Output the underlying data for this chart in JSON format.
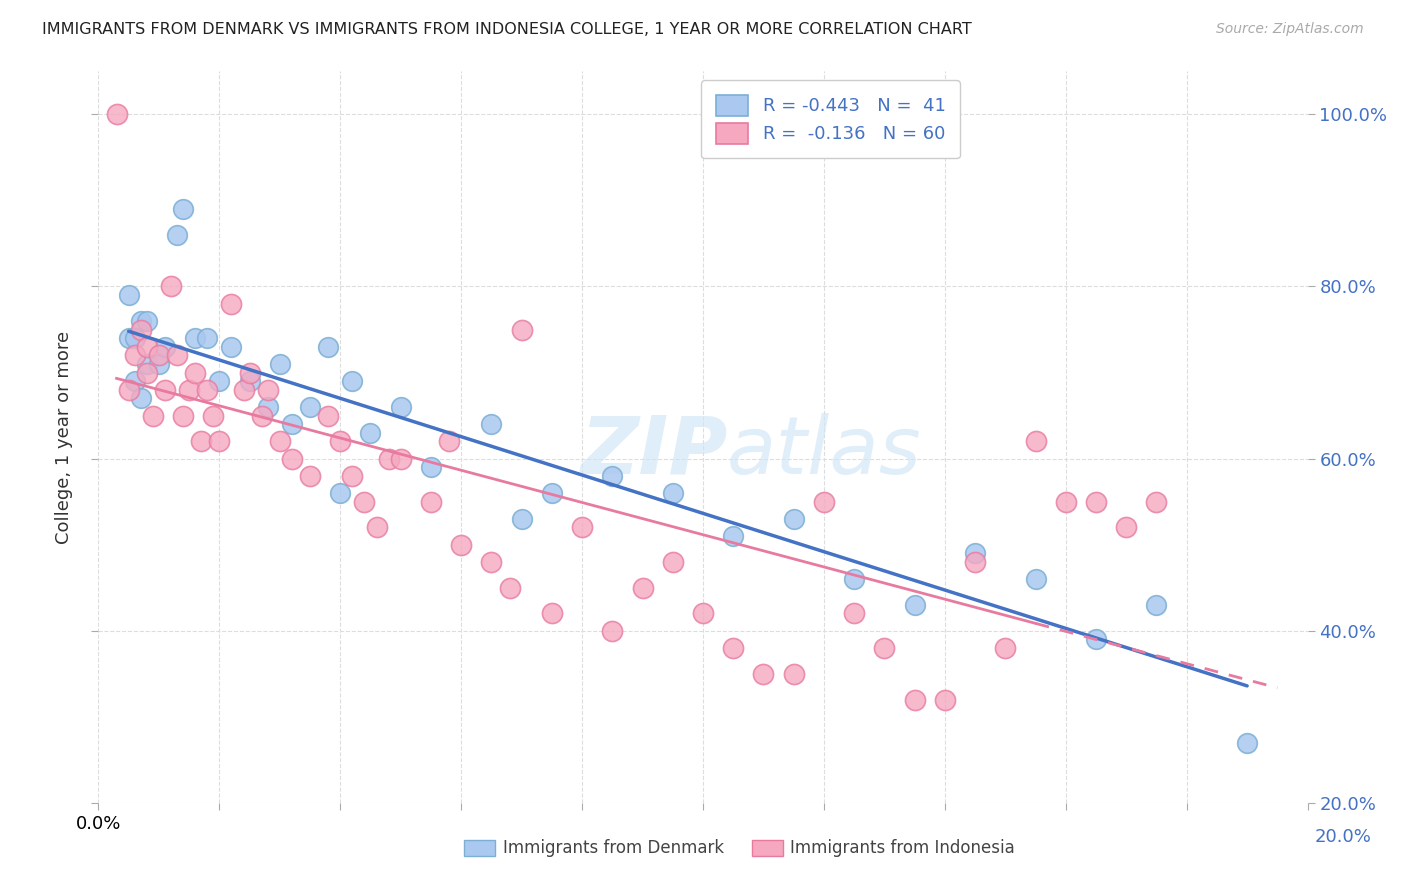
{
  "title": "IMMIGRANTS FROM DENMARK VS IMMIGRANTS FROM INDONESIA COLLEGE, 1 YEAR OR MORE CORRELATION CHART",
  "source": "Source: ZipAtlas.com",
  "ylabel": "College, 1 year or more",
  "xlim": [
    0.0,
    0.2
  ],
  "ylim": [
    0.2,
    1.05
  ],
  "denmark_color": "#aac8f0",
  "indonesia_color": "#f5a8c0",
  "denmark_edge": "#7bafd4",
  "indonesia_edge": "#e87aa0",
  "line_denmark": "#4472c4",
  "line_indonesia": "#e87aa0",
  "denmark_x": [
    0.005,
    0.007,
    0.005,
    0.006,
    0.006,
    0.007,
    0.008,
    0.008,
    0.01,
    0.011,
    0.013,
    0.014,
    0.016,
    0.018,
    0.02,
    0.022,
    0.025,
    0.028,
    0.03,
    0.032,
    0.035,
    0.038,
    0.04,
    0.042,
    0.045,
    0.05,
    0.055,
    0.065,
    0.07,
    0.075,
    0.085,
    0.095,
    0.105,
    0.115,
    0.125,
    0.135,
    0.145,
    0.155,
    0.165,
    0.175,
    0.19
  ],
  "denmark_y": [
    0.74,
    0.76,
    0.79,
    0.74,
    0.69,
    0.67,
    0.71,
    0.76,
    0.71,
    0.73,
    0.86,
    0.89,
    0.74,
    0.74,
    0.69,
    0.73,
    0.69,
    0.66,
    0.71,
    0.64,
    0.66,
    0.73,
    0.56,
    0.69,
    0.63,
    0.66,
    0.59,
    0.64,
    0.53,
    0.56,
    0.58,
    0.56,
    0.51,
    0.53,
    0.46,
    0.43,
    0.49,
    0.46,
    0.39,
    0.43,
    0.27
  ],
  "indonesia_x": [
    0.003,
    0.005,
    0.006,
    0.007,
    0.008,
    0.008,
    0.009,
    0.01,
    0.011,
    0.012,
    0.013,
    0.014,
    0.015,
    0.016,
    0.017,
    0.018,
    0.019,
    0.02,
    0.022,
    0.024,
    0.025,
    0.027,
    0.028,
    0.03,
    0.032,
    0.035,
    0.038,
    0.04,
    0.042,
    0.044,
    0.046,
    0.048,
    0.05,
    0.055,
    0.058,
    0.06,
    0.065,
    0.068,
    0.07,
    0.075,
    0.08,
    0.085,
    0.09,
    0.095,
    0.1,
    0.105,
    0.11,
    0.115,
    0.12,
    0.125,
    0.13,
    0.135,
    0.14,
    0.145,
    0.15,
    0.155,
    0.16,
    0.165,
    0.17,
    0.175
  ],
  "indonesia_y": [
    1.0,
    0.68,
    0.72,
    0.75,
    0.73,
    0.7,
    0.65,
    0.72,
    0.68,
    0.8,
    0.72,
    0.65,
    0.68,
    0.7,
    0.62,
    0.68,
    0.65,
    0.62,
    0.78,
    0.68,
    0.7,
    0.65,
    0.68,
    0.62,
    0.6,
    0.58,
    0.65,
    0.62,
    0.58,
    0.55,
    0.52,
    0.6,
    0.6,
    0.55,
    0.62,
    0.5,
    0.48,
    0.45,
    0.75,
    0.42,
    0.52,
    0.4,
    0.45,
    0.48,
    0.42,
    0.38,
    0.35,
    0.35,
    0.55,
    0.42,
    0.38,
    0.32,
    0.32,
    0.48,
    0.38,
    0.62,
    0.55,
    0.55,
    0.52,
    0.55
  ],
  "watermark": "ZIPatlas",
  "background_color": "#ffffff",
  "grid_color": "#dddddd",
  "legend_label1": "R = -0.443   N =  41",
  "legend_label2": "R =  -0.136   N = 60",
  "bottom_label1": "Immigrants from Denmark",
  "bottom_label2": "Immigrants from Indonesia"
}
